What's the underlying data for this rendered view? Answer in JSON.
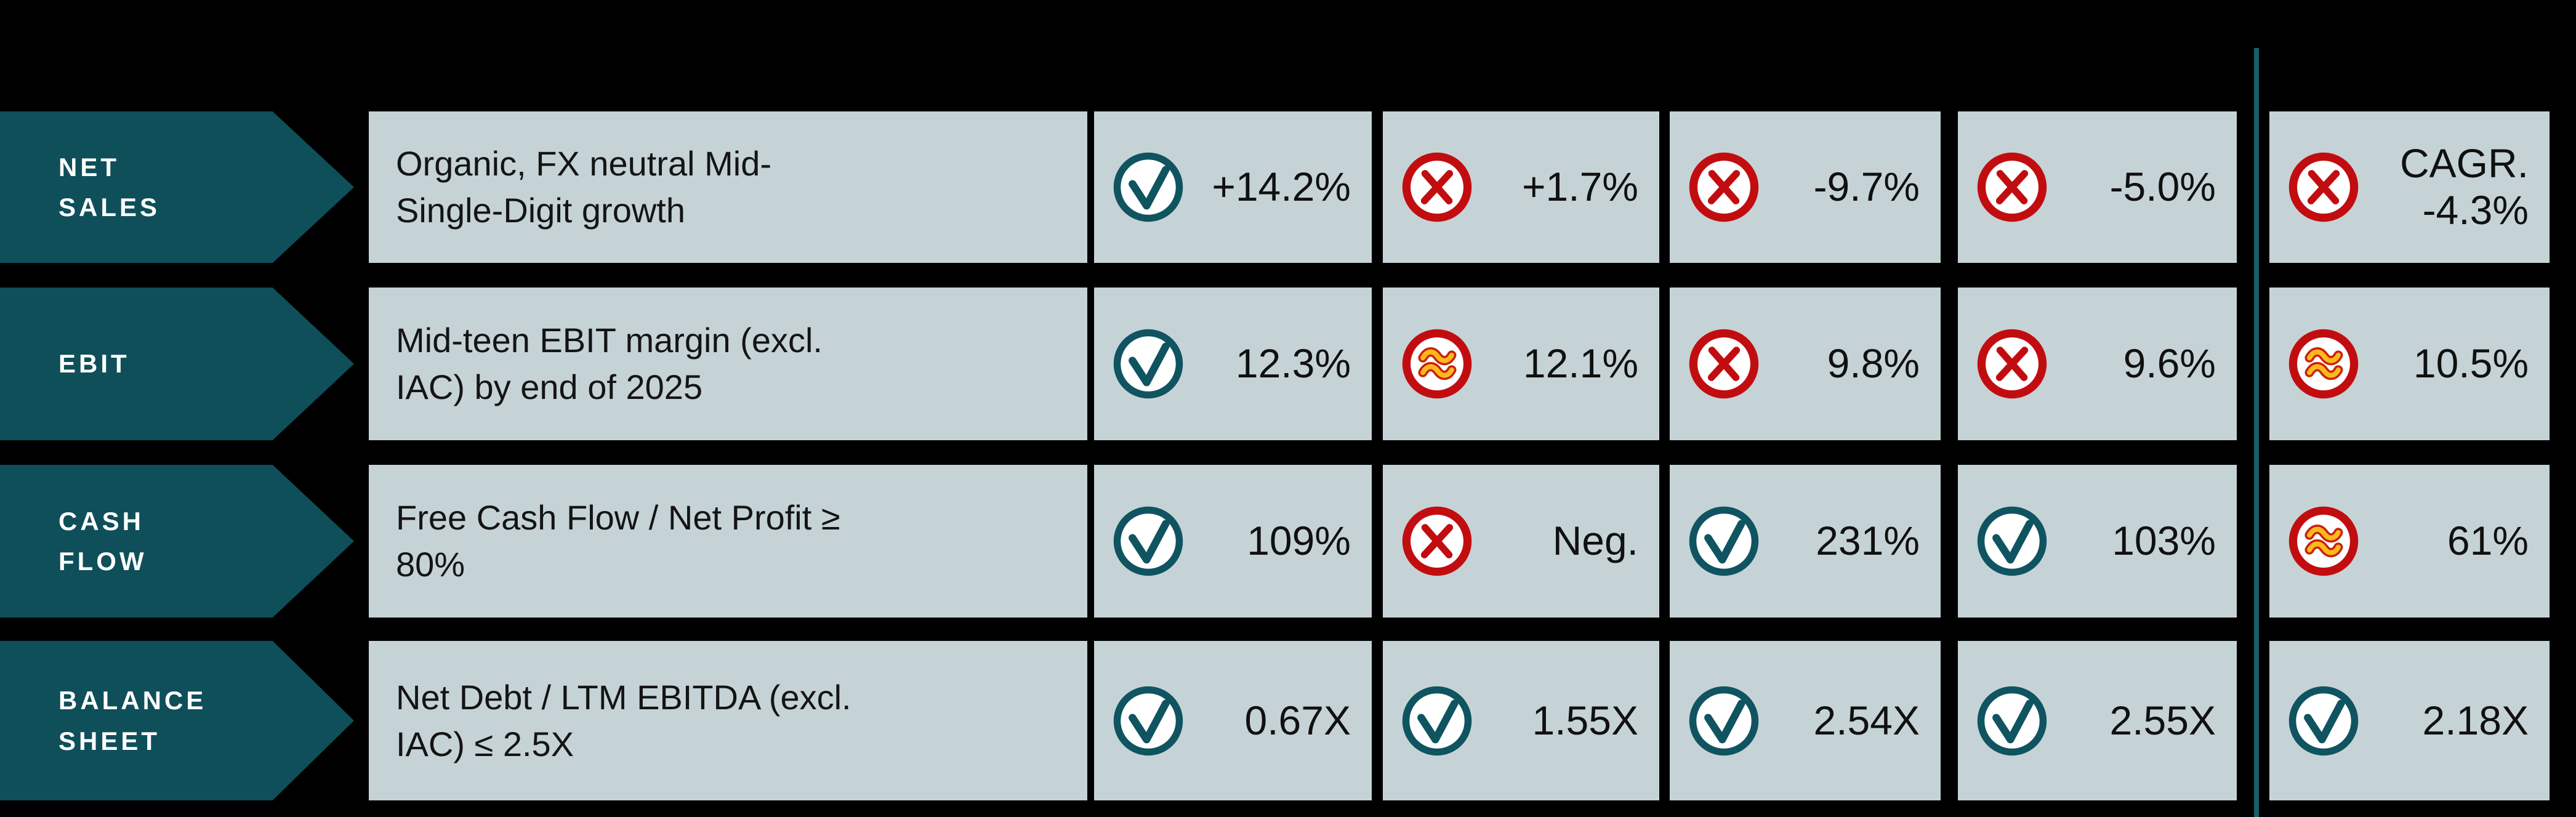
{
  "colors": {
    "background": "#000000",
    "arrow_fill": "#0e4f5a",
    "cell_background": "#c6d3d6",
    "check": "#0f5460",
    "cross": "#c20d10",
    "approx_ring": "#c9220c",
    "approx_glyph": "#ffb81c",
    "divider": "#17606a",
    "value_text": "#101010",
    "category_text": "#ffffff"
  },
  "table": {
    "rows": [
      {
        "category": "NET SALES",
        "category_lines": [
          "NET",
          "SALES"
        ],
        "target": "Organic, FX neutral Mid-Single-Digit growth",
        "target_lines": [
          "Organic, FX neutral Mid-",
          "Single-Digit growth"
        ],
        "cells": [
          {
            "icon": "check",
            "value": "+14.2%",
            "value_lines": [
              "+14.2%"
            ]
          },
          {
            "icon": "cross",
            "value": "+1.7%",
            "value_lines": [
              "+1.7%"
            ]
          },
          {
            "icon": "cross",
            "value": "-9.7%",
            "value_lines": [
              "-9.7%"
            ]
          },
          {
            "icon": "cross",
            "value": "-5.0%",
            "value_lines": [
              "-5.0%"
            ]
          },
          {
            "icon": "cross",
            "value": "CAGR. -4.3%",
            "value_lines": [
              "CAGR.",
              "-4.3%"
            ]
          }
        ]
      },
      {
        "category": "EBIT",
        "category_lines": [
          "EBIT"
        ],
        "target": "Mid-teen EBIT margin (excl. IAC) by end of 2025",
        "target_lines": [
          "Mid-teen EBIT margin (excl.",
          "IAC) by end of 2025"
        ],
        "cells": [
          {
            "icon": "check",
            "value": "12.3%",
            "value_lines": [
              "12.3%"
            ]
          },
          {
            "icon": "approx",
            "value": "12.1%",
            "value_lines": [
              "12.1%"
            ]
          },
          {
            "icon": "cross",
            "value": "9.8%",
            "value_lines": [
              "9.8%"
            ]
          },
          {
            "icon": "cross",
            "value": "9.6%",
            "value_lines": [
              "9.6%"
            ]
          },
          {
            "icon": "approx",
            "value": "10.5%",
            "value_lines": [
              "10.5%"
            ]
          }
        ]
      },
      {
        "category": "CASH FLOW",
        "category_lines": [
          "CASH",
          "FLOW"
        ],
        "target": "Free Cash Flow / Net Profit ≥ 80%",
        "target_lines": [
          "Free Cash Flow / Net Profit ≥",
          "80%"
        ],
        "cells": [
          {
            "icon": "check",
            "value": "109%",
            "value_lines": [
              "109%"
            ]
          },
          {
            "icon": "cross",
            "value": "Neg.",
            "value_lines": [
              "Neg."
            ]
          },
          {
            "icon": "check",
            "value": "231%",
            "value_lines": [
              "231%"
            ]
          },
          {
            "icon": "check",
            "value": "103%",
            "value_lines": [
              "103%"
            ]
          },
          {
            "icon": "approx",
            "value": "61%",
            "value_lines": [
              "61%"
            ]
          }
        ]
      },
      {
        "category": "BALANCE SHEET",
        "category_lines": [
          "BALANCE",
          "SHEET"
        ],
        "target": "Net Debt / LTM EBITDA (excl. IAC) ≤ 2.5X",
        "target_lines": [
          "Net Debt / LTM EBITDA (excl.",
          "IAC) ≤ 2.5X"
        ],
        "cells": [
          {
            "icon": "check",
            "value": "0.67X",
            "value_lines": [
              "0.67X"
            ]
          },
          {
            "icon": "check",
            "value": "1.55X",
            "value_lines": [
              "1.55X"
            ]
          },
          {
            "icon": "check",
            "value": "2.54X",
            "value_lines": [
              "2.54X"
            ]
          },
          {
            "icon": "check",
            "value": "2.55X",
            "value_lines": [
              "2.55X"
            ]
          },
          {
            "icon": "check",
            "value": "2.18X",
            "value_lines": [
              "2.18X"
            ]
          }
        ]
      }
    ]
  }
}
